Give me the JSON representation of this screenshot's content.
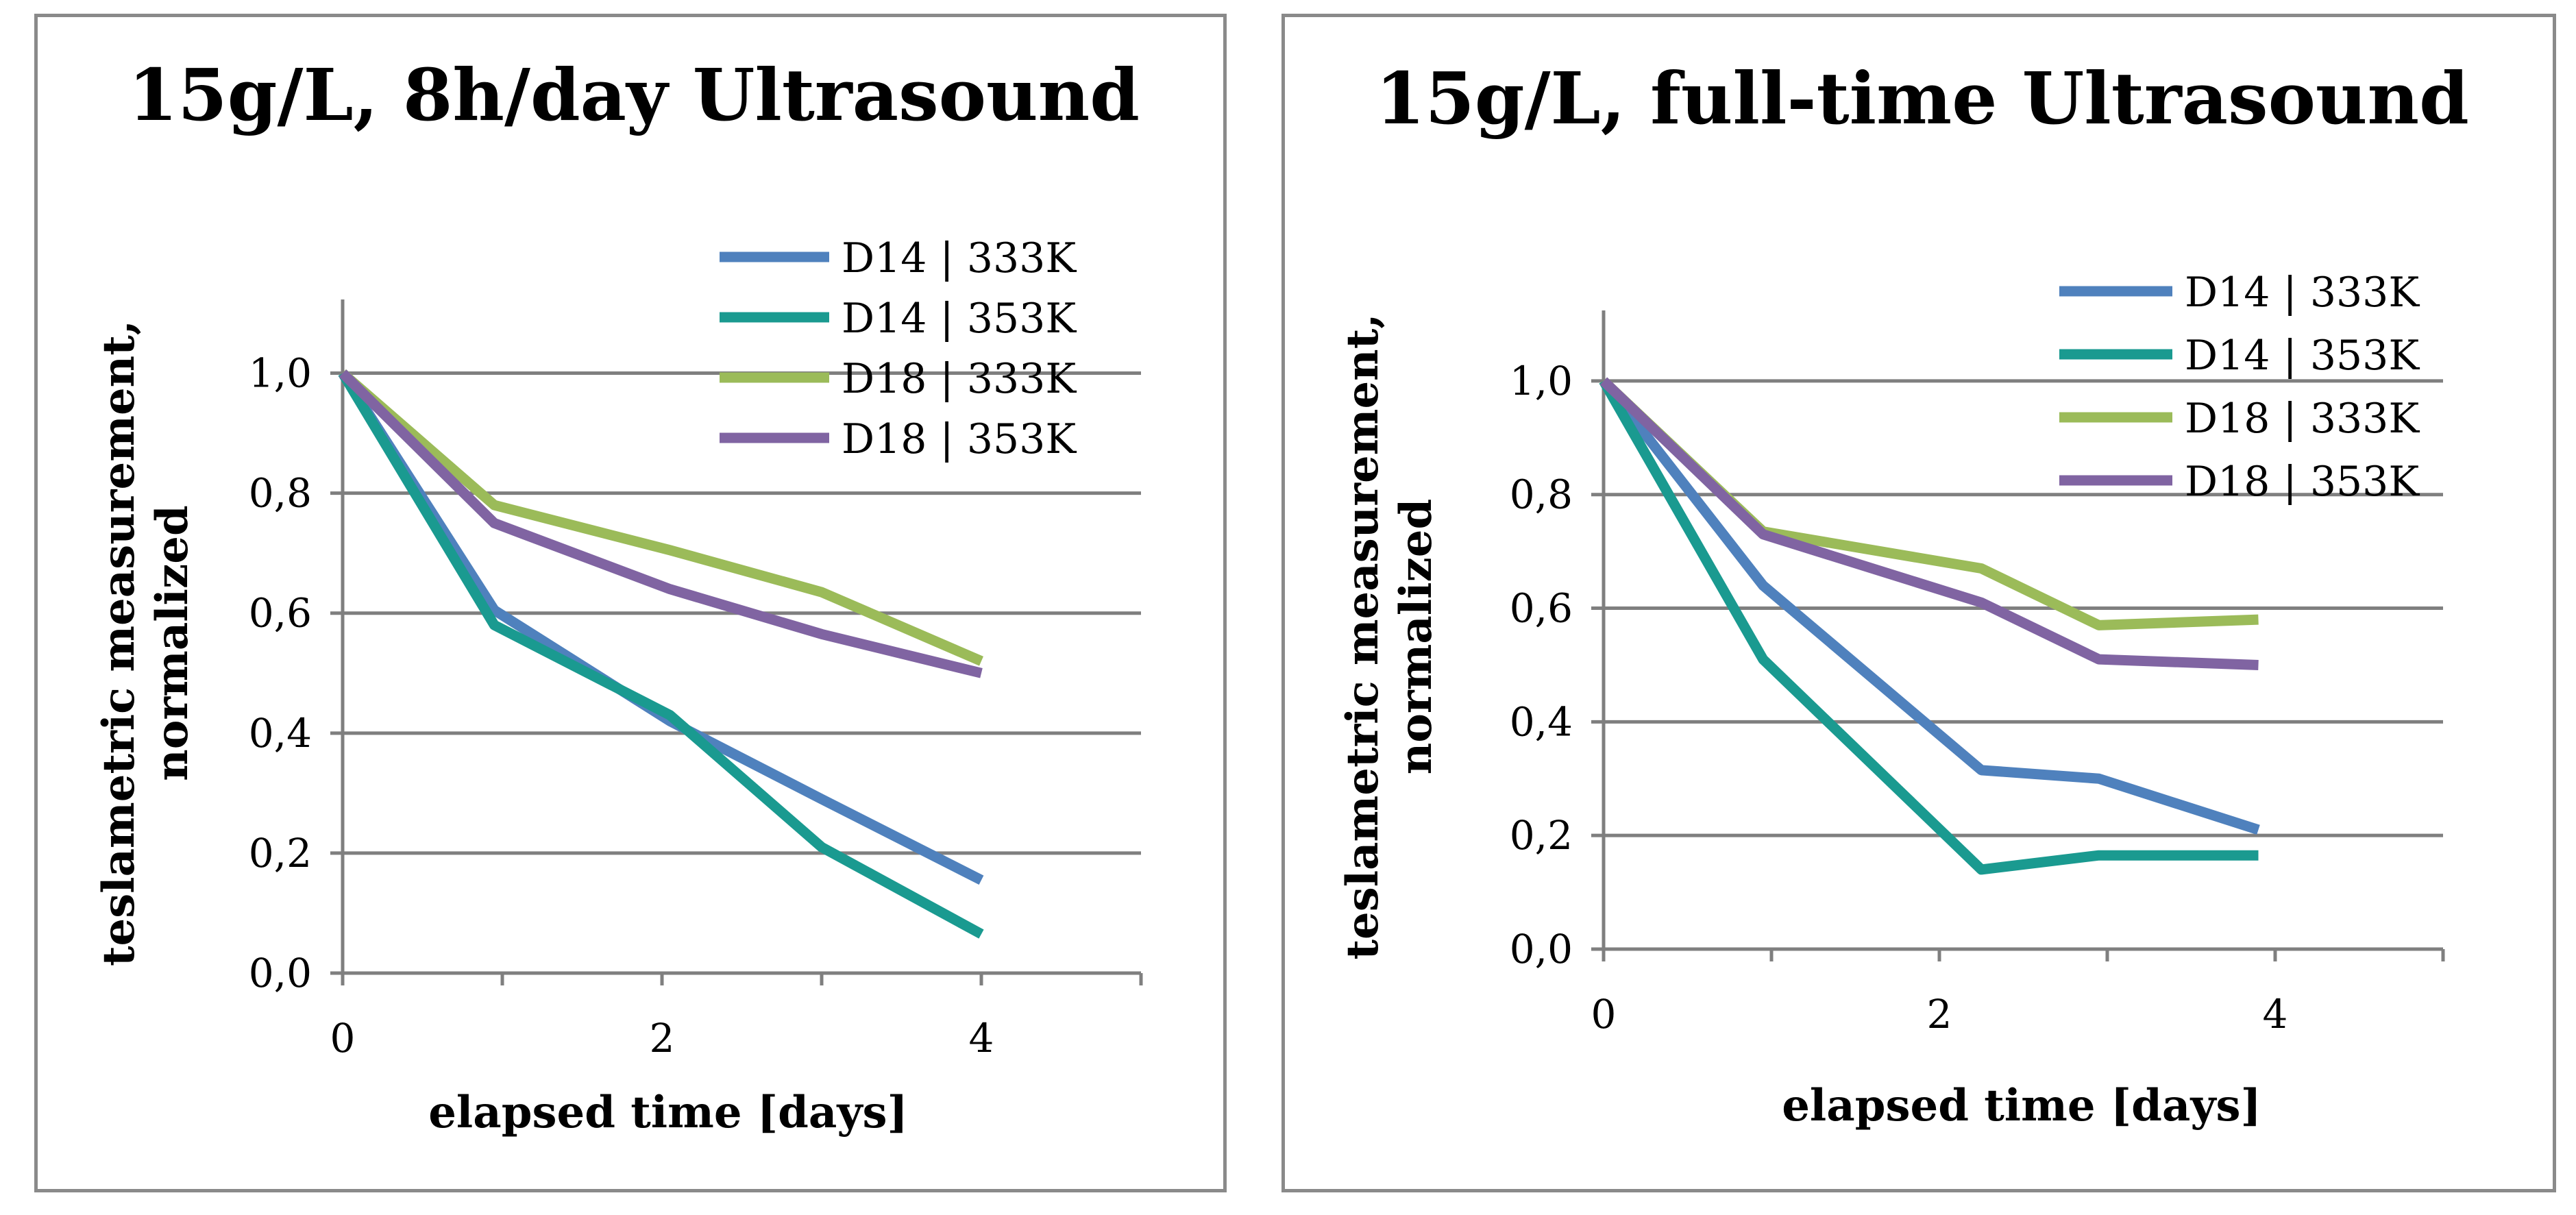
{
  "chart_data": [
    {
      "type": "line",
      "title": "15g/L, 8h/day Ultrasound",
      "xlabel": "elapsed time [days]",
      "ylabel_line1": "teslametric measurement,",
      "ylabel_line2": "normalized",
      "xlim": [
        0,
        5
      ],
      "ylim": [
        0,
        1.1
      ],
      "xticks": [
        0,
        2,
        4
      ],
      "yticks": [
        0.0,
        0.2,
        0.4,
        0.6,
        0.8,
        1.0
      ],
      "ytick_labels": [
        "0,0",
        "0,2",
        "0,4",
        "0,6",
        "0,8",
        "1,0"
      ],
      "grid": true,
      "legend_position": "top-right",
      "series": [
        {
          "name": "D14 | 333K",
          "color": "#4f81bd",
          "x": [
            0,
            0.95,
            2.05,
            3.0,
            4.0
          ],
          "y": [
            1.0,
            0.605,
            0.42,
            0.29,
            0.155
          ]
        },
        {
          "name": "D14 | 353K",
          "color": "#1a9a90",
          "x": [
            0,
            0.95,
            2.05,
            3.0,
            4.0
          ],
          "y": [
            1.0,
            0.58,
            0.43,
            0.21,
            0.065
          ]
        },
        {
          "name": "D18 | 333K",
          "color": "#9bbb59",
          "x": [
            0,
            0.95,
            2.05,
            3.0,
            4.0
          ],
          "y": [
            1.0,
            0.78,
            0.705,
            0.635,
            0.52
          ]
        },
        {
          "name": "D18 | 353K",
          "color": "#8064a2",
          "x": [
            0,
            0.95,
            2.05,
            3.0,
            4.0
          ],
          "y": [
            1.0,
            0.75,
            0.64,
            0.565,
            0.5
          ]
        }
      ]
    },
    {
      "type": "line",
      "title": "15g/L, full-time Ultrasound",
      "xlabel": "elapsed time [days]",
      "ylabel_line1": "teslametric measurement,",
      "ylabel_line2": "normalized",
      "xlim": [
        0,
        5
      ],
      "ylim": [
        0,
        1.1
      ],
      "xticks": [
        0,
        2,
        4
      ],
      "yticks": [
        0.0,
        0.2,
        0.4,
        0.6,
        0.8,
        1.0
      ],
      "ytick_labels": [
        "0,0",
        "0,2",
        "0,4",
        "0,6",
        "0,8",
        "1,0"
      ],
      "grid": true,
      "legend_position": "top-right",
      "series": [
        {
          "name": "D14 | 333K",
          "color": "#4f81bd",
          "x": [
            0,
            0.95,
            2.25,
            2.95,
            3.9
          ],
          "y": [
            1.0,
            0.64,
            0.315,
            0.3,
            0.21
          ]
        },
        {
          "name": "D14 | 353K",
          "color": "#1a9a90",
          "x": [
            0,
            0.95,
            2.25,
            2.95,
            3.9
          ],
          "y": [
            1.0,
            0.51,
            0.14,
            0.165,
            0.165
          ]
        },
        {
          "name": "D18 | 333K",
          "color": "#9bbb59",
          "x": [
            0,
            0.95,
            2.25,
            2.95,
            3.9
          ],
          "y": [
            1.0,
            0.735,
            0.67,
            0.57,
            0.58
          ]
        },
        {
          "name": "D18 | 353K",
          "color": "#8064a2",
          "x": [
            0,
            0.95,
            2.25,
            2.95,
            3.9
          ],
          "y": [
            1.0,
            0.73,
            0.61,
            0.51,
            0.5
          ]
        }
      ]
    }
  ]
}
